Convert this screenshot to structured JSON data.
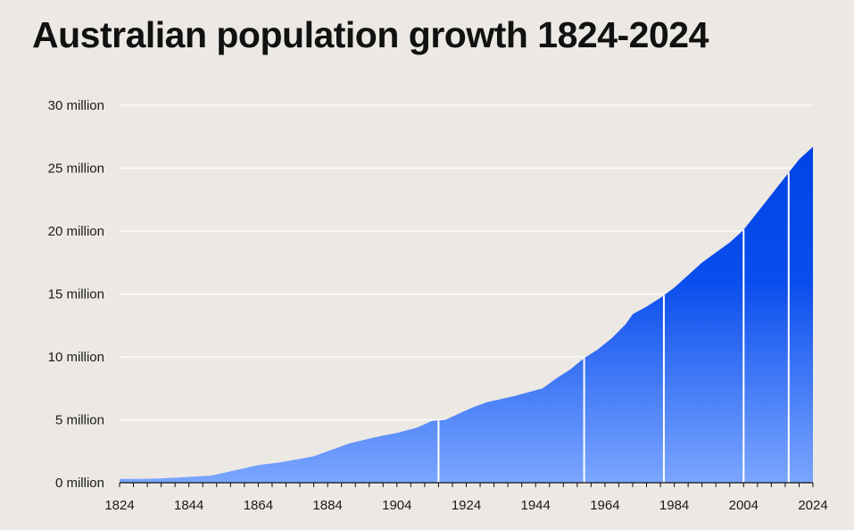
{
  "chart_data": {
    "type": "area",
    "title": "Australian population growth 1824-2024",
    "xlabel": "",
    "ylabel": "",
    "x_ticks": [
      1824,
      1844,
      1864,
      1884,
      1904,
      1924,
      1944,
      1964,
      1984,
      2004,
      2024
    ],
    "y_ticks": [
      "0 million",
      "5 million",
      "10 million",
      "15 million",
      "20 million",
      "25 million",
      "30 million"
    ],
    "y_tick_values": [
      0,
      5,
      10,
      15,
      20,
      25,
      30
    ],
    "xlim": [
      1824,
      2024
    ],
    "ylim": [
      0,
      30
    ],
    "grid": "horizontal",
    "legend": "none",
    "series": [
      {
        "x": [
          1824,
          1830,
          1836,
          1840,
          1846,
          1850,
          1852,
          1856,
          1860,
          1864,
          1870,
          1876,
          1880,
          1884,
          1890,
          1896,
          1900,
          1904,
          1910,
          1914,
          1918,
          1922,
          1926,
          1930,
          1934,
          1938,
          1942,
          1946,
          1950,
          1954,
          1958,
          1962,
          1966,
          1970,
          1972,
          1976,
          1980,
          1984,
          1988,
          1992,
          1996,
          2000,
          2004,
          2008,
          2012,
          2016,
          2020,
          2024
        ],
        "values": [
          0.3,
          0.3,
          0.35,
          0.4,
          0.5,
          0.55,
          0.65,
          0.9,
          1.15,
          1.4,
          1.6,
          1.9,
          2.1,
          2.5,
          3.1,
          3.5,
          3.75,
          3.95,
          4.4,
          4.9,
          5.0,
          5.5,
          6.0,
          6.4,
          6.65,
          6.9,
          7.2,
          7.5,
          8.3,
          9.0,
          9.9,
          10.6,
          11.5,
          12.6,
          13.4,
          14.0,
          14.7,
          15.5,
          16.5,
          17.5,
          18.3,
          19.1,
          20.1,
          21.5,
          22.9,
          24.3,
          25.7,
          26.7
        ]
      }
    ],
    "marker_lines_x": [
      1916,
      1958,
      1981,
      2004,
      2017
    ],
    "area_color_top": "#0044e6",
    "area_color_bottom": "#7ba6ff",
    "gridline_color": "#ffffff",
    "marker_line_color": "#ffffff"
  }
}
